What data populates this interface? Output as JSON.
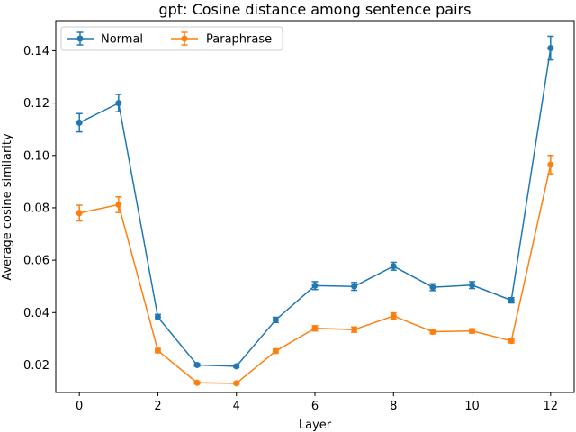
{
  "chart_data": {
    "type": "line",
    "title": "gpt: Cosine distance among sentence pairs",
    "xlabel": "Layer",
    "ylabel": "Average cosine similarity",
    "xlim": [
      -0.6,
      12.6
    ],
    "ylim": [
      0.0095,
      0.1515
    ],
    "xticks": [
      0,
      2,
      4,
      6,
      8,
      10,
      12
    ],
    "yticks": [
      0.02,
      0.04,
      0.06,
      0.08,
      0.1,
      0.12,
      0.14
    ],
    "ytick_labels": [
      "0.02",
      "0.04",
      "0.06",
      "0.08",
      "0.10",
      "0.12",
      "0.14"
    ],
    "grid": false,
    "legend_position": "top-left",
    "x": [
      0,
      1,
      2,
      3,
      4,
      5,
      6,
      7,
      8,
      9,
      10,
      11,
      12
    ],
    "series": [
      {
        "name": "Normal",
        "color": "#1f77b4",
        "values": [
          0.1125,
          0.12,
          0.0383,
          0.02,
          0.0195,
          0.0372,
          0.0503,
          0.05,
          0.0577,
          0.0497,
          0.0505,
          0.0447,
          0.141
        ],
        "errors": [
          0.0035,
          0.0033,
          0.001,
          0.0005,
          0.0005,
          0.001,
          0.0015,
          0.0015,
          0.0015,
          0.0013,
          0.0013,
          0.001,
          0.0045
        ]
      },
      {
        "name": "Paraphrase",
        "color": "#ff7f0e",
        "values": [
          0.078,
          0.0812,
          0.0255,
          0.0132,
          0.013,
          0.0253,
          0.034,
          0.0335,
          0.0387,
          0.0327,
          0.033,
          0.0292,
          0.0965
        ],
        "errors": [
          0.003,
          0.003,
          0.0008,
          0.0004,
          0.0004,
          0.0008,
          0.001,
          0.001,
          0.0012,
          0.0008,
          0.0008,
          0.0008,
          0.0035
        ]
      }
    ]
  }
}
